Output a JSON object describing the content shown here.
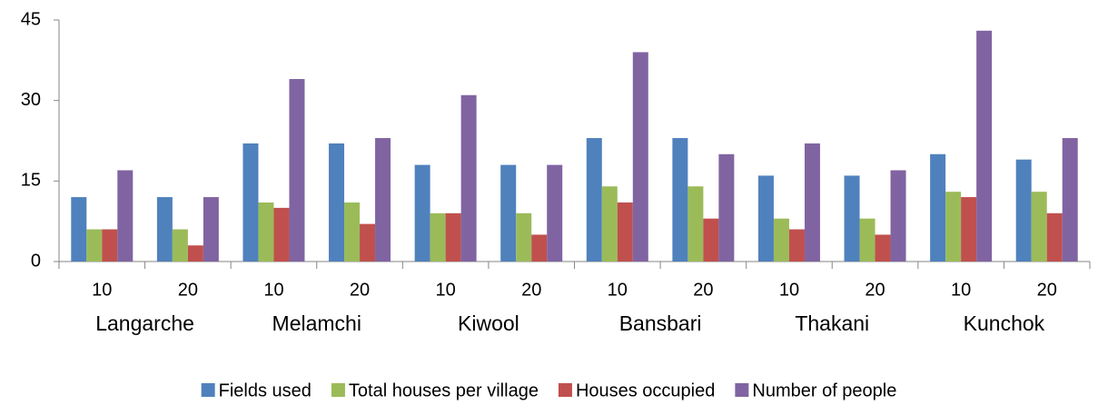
{
  "chart_data": {
    "type": "bar",
    "categories": [
      "10",
      "20",
      "10",
      "20",
      "10",
      "20",
      "10",
      "20",
      "10",
      "20",
      "10",
      "20"
    ],
    "groups": [
      "Langarche",
      "Melamchi",
      "Kiwool",
      "Bansbari",
      "Thakani",
      "Kunchok"
    ],
    "series": [
      {
        "name": "Fields used",
        "color": "#4f81bd",
        "values": [
          12,
          12,
          22,
          22,
          18,
          18,
          23,
          23,
          16,
          16,
          20,
          19
        ]
      },
      {
        "name": "Total houses per village",
        "color": "#9bbb59",
        "values": [
          6,
          6,
          11,
          11,
          9,
          9,
          14,
          14,
          8,
          8,
          13,
          13
        ]
      },
      {
        "name": "Houses occupied",
        "color": "#c0504d",
        "values": [
          6,
          3,
          10,
          7,
          9,
          5,
          11,
          8,
          6,
          5,
          12,
          9
        ]
      },
      {
        "name": "Number of people",
        "color": "#8064a2",
        "values": [
          17,
          12,
          34,
          23,
          31,
          18,
          39,
          20,
          22,
          17,
          43,
          23
        ]
      }
    ],
    "ylim": [
      0,
      45
    ],
    "yticks": [
      0,
      15,
      30,
      45
    ],
    "grid": false,
    "legend": "bottom"
  }
}
